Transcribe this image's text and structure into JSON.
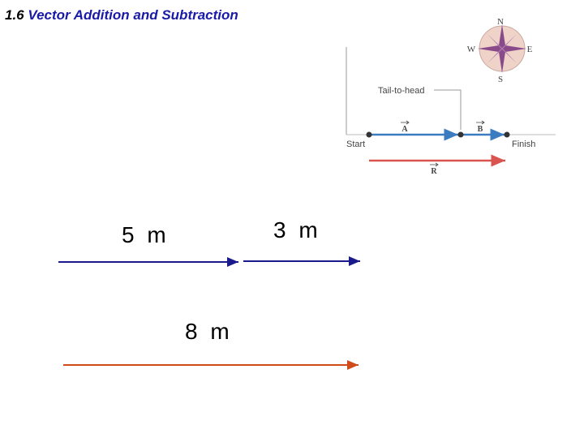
{
  "title": {
    "number": "1.6",
    "text": "Vector Addition and Subtraction"
  },
  "figure": {
    "compass": {
      "n": "N",
      "w": "W",
      "e": "E",
      "s": "S"
    },
    "callout": "Tail-to-head",
    "start": "Start",
    "finish": "Finish",
    "vectors": [
      "A",
      "B",
      "R"
    ]
  },
  "arrows": [
    {
      "label": "5 m"
    },
    {
      "label": "3 m"
    },
    {
      "label": "8 m"
    }
  ]
}
